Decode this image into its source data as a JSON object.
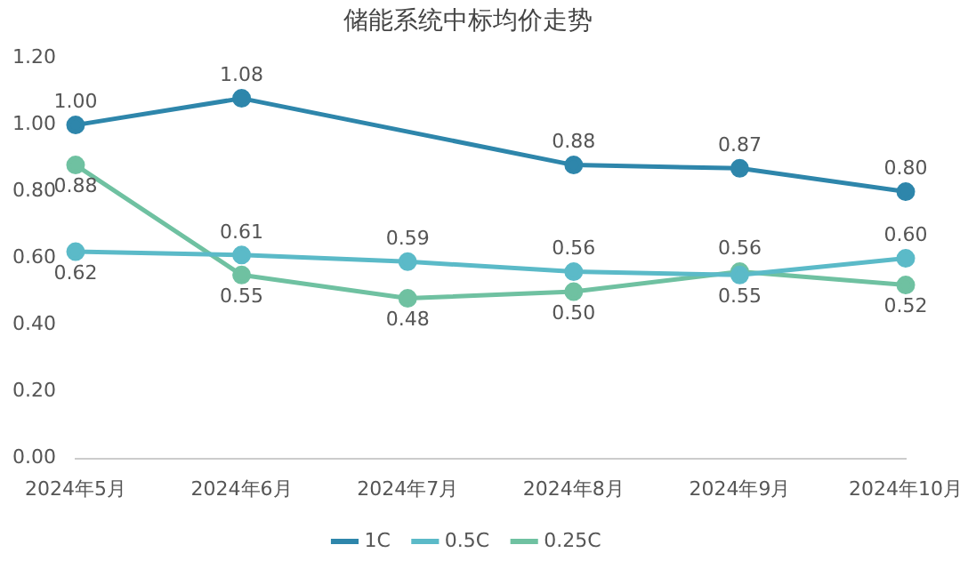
{
  "chart_data": {
    "type": "line",
    "title": "储能系统中标均价走势",
    "categories": [
      "2024年5月",
      "2024年6月",
      "2024年7月",
      "2024年8月",
      "2024年9月",
      "2024年10月"
    ],
    "series": [
      {
        "name": "1C",
        "color": "#2e86ab",
        "values": [
          1.0,
          1.08,
          null,
          0.88,
          0.87,
          0.8
        ],
        "value_labels": [
          "1.00",
          "1.08",
          null,
          "0.88",
          "0.87",
          "0.80"
        ]
      },
      {
        "name": "0.5C",
        "color": "#5bbac8",
        "values": [
          0.62,
          0.61,
          0.59,
          0.56,
          0.55,
          0.6
        ],
        "value_labels": [
          "0.62",
          "0.61",
          "0.59",
          "0.56",
          "0.55",
          "0.60"
        ]
      },
      {
        "name": "0.25C",
        "color": "#6fc1a1",
        "values": [
          0.88,
          0.55,
          0.48,
          0.5,
          0.56,
          0.52
        ],
        "value_labels": [
          "0.88",
          "0.55",
          "0.48",
          "0.50",
          "0.56",
          "0.52"
        ]
      }
    ],
    "ylim": [
      0,
      1.2
    ],
    "yticks": [
      {
        "value": 0,
        "label": "0.00"
      },
      {
        "value": 0.2,
        "label": "0.20"
      },
      {
        "value": 0.4,
        "label": "0.40"
      },
      {
        "value": 0.6,
        "label": "0.60"
      },
      {
        "value": 0.8,
        "label": "0.80"
      },
      {
        "value": 1.0,
        "label": "1.00"
      },
      {
        "value": 1.2,
        "label": "1.20"
      }
    ],
    "grid": false,
    "legend": "bottom",
    "marker": "circle",
    "line_style": "solid"
  }
}
